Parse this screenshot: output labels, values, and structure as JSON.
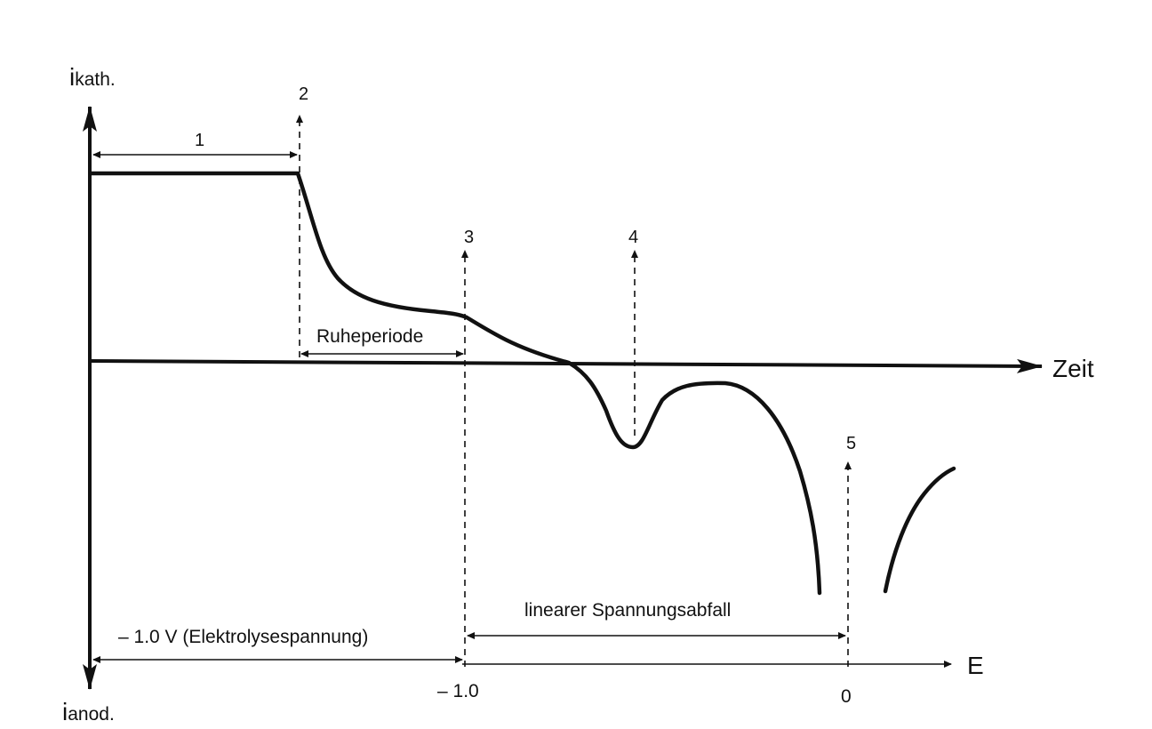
{
  "axes": {
    "y_top_label_main": "i",
    "y_top_label_sub": "kath.",
    "y_bottom_label_main": "i",
    "y_bottom_label_sub": "anod.",
    "time_axis_label": "Zeit",
    "potential_axis_label": "E",
    "potential_tick_left": "– 1.0",
    "potential_tick_right": "0"
  },
  "markers": {
    "m1": "1",
    "m2": "2",
    "m3": "3",
    "m4": "4",
    "m5": "5"
  },
  "annotations": {
    "rest_period": "Ruheperiode",
    "linear_drop": "linearer Spannungsabfall",
    "electrolysis_voltage": "– 1.0 V (Elektrolysespannung)"
  },
  "colors": {
    "ink": "#111111",
    "background": "#ffffff"
  }
}
